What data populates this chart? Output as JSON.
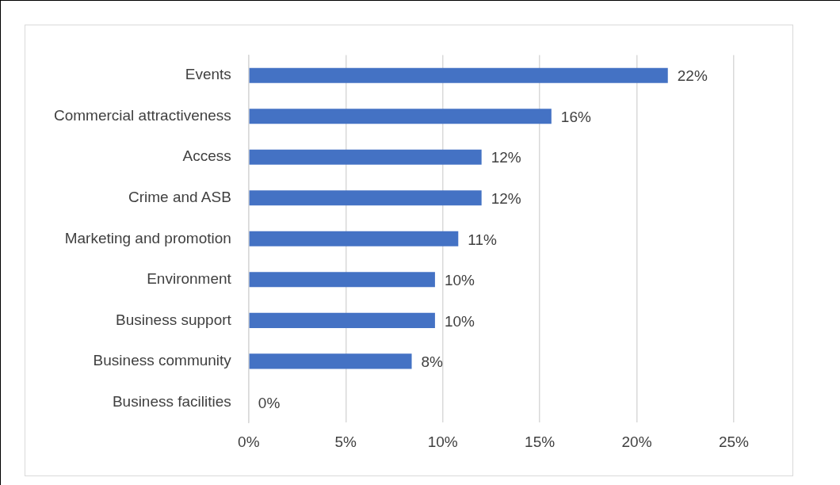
{
  "chart_data": {
    "type": "bar",
    "orientation": "horizontal",
    "categories": [
      "Events",
      "Commercial attractiveness",
      "Access",
      "Crime and ASB",
      "Marketing and promotion",
      "Environment",
      "Business support",
      "Business community",
      "Business facilities"
    ],
    "values": [
      21.6,
      15.6,
      12.0,
      12.0,
      10.8,
      9.6,
      9.6,
      8.4,
      0
    ],
    "value_labels": [
      "22%",
      "16%",
      "12%",
      "12%",
      "11%",
      "10%",
      "10%",
      "8%",
      "0%"
    ],
    "color": "#4472c4",
    "xlim": [
      0,
      25
    ],
    "xticks": [
      {
        "value": 0,
        "label": "0%"
      },
      {
        "value": 5,
        "label": "5%"
      },
      {
        "value": 10,
        "label": "10%"
      },
      {
        "value": 15,
        "label": "15%"
      },
      {
        "value": 20,
        "label": "20%"
      },
      {
        "value": 25,
        "label": "25%"
      }
    ],
    "grid": "x",
    "legend": false
  }
}
